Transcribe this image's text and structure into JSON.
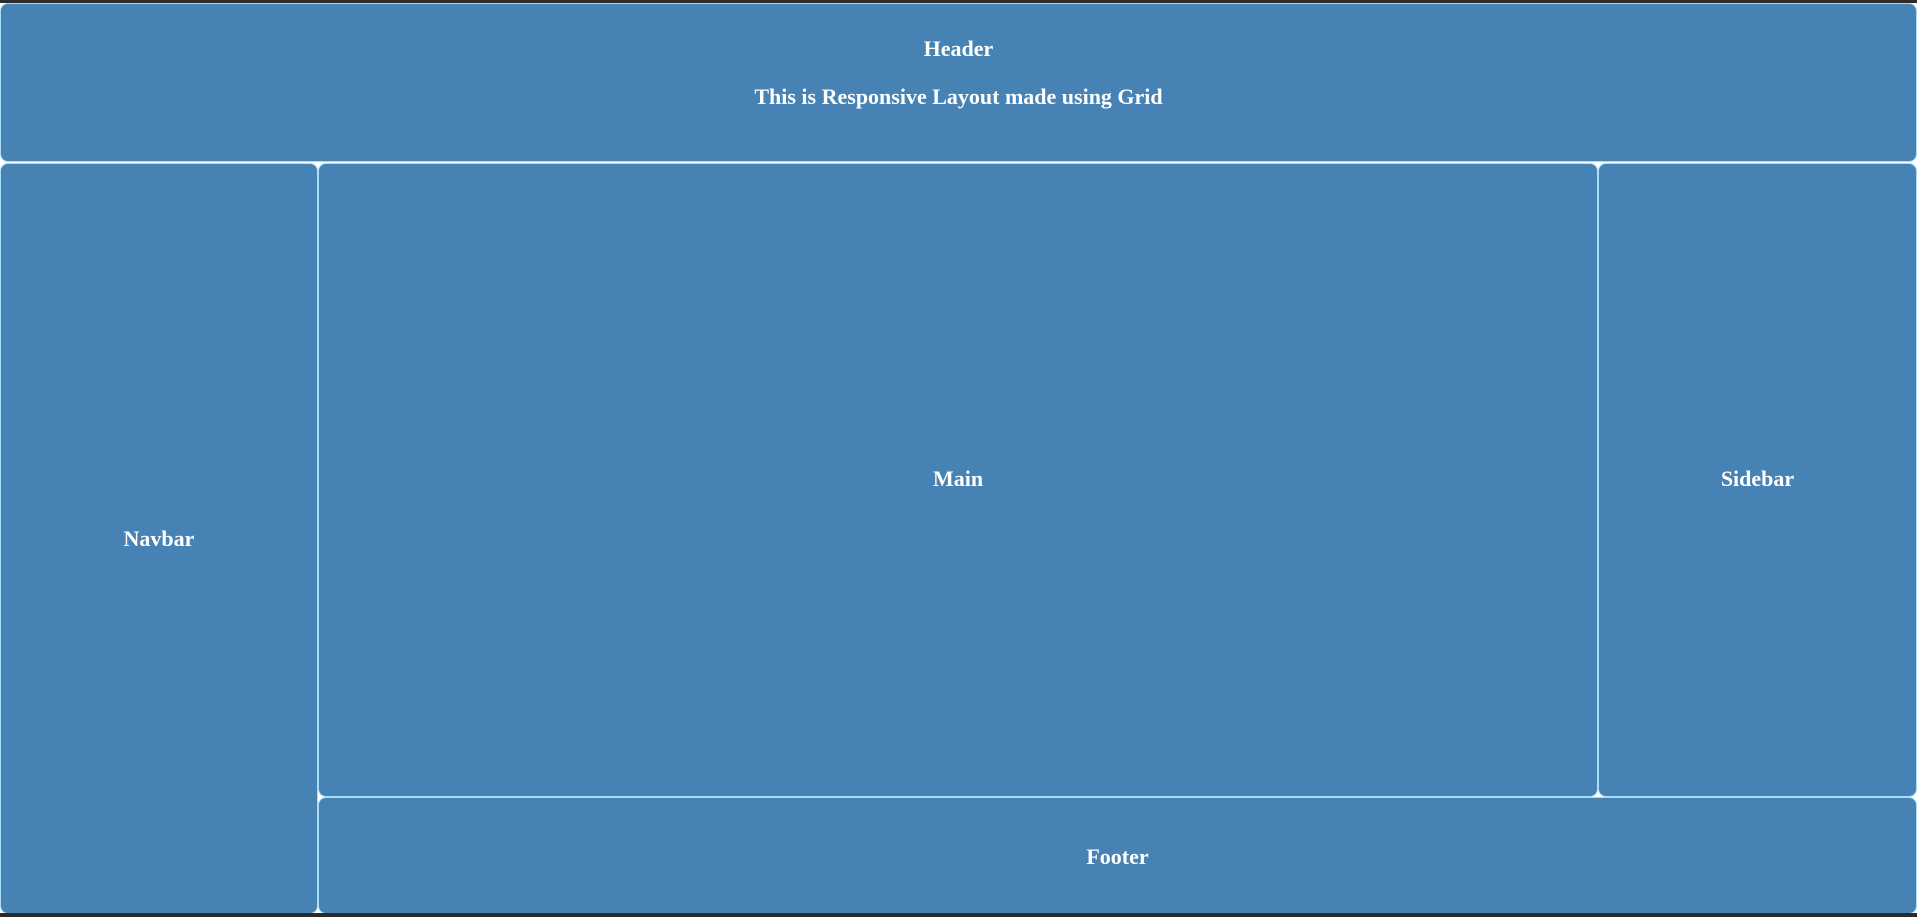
{
  "layout": {
    "header": {
      "title": "Header",
      "subtitle": "This is Responsive Layout made using Grid"
    },
    "navbar": {
      "label": "Navbar"
    },
    "main": {
      "label": "Main"
    },
    "sidebar": {
      "label": "Sidebar"
    },
    "footer": {
      "label": "Footer"
    }
  },
  "colors": {
    "panel_background": "#4682b4",
    "panel_border": "#a9dcf5",
    "text": "#ffffff"
  }
}
